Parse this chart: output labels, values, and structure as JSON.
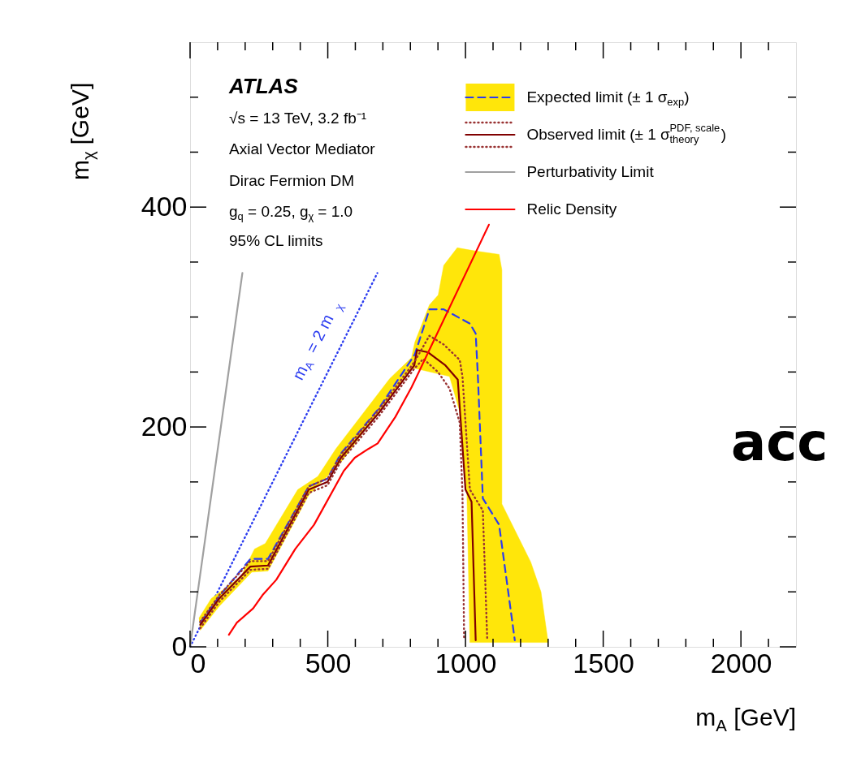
{
  "chart_data": {
    "type": "line",
    "xlabel": "m$_{A}$ [GeV]",
    "ylabel": "m$_{χ}$ [GeV]",
    "xlim": [
      0,
      2200
    ],
    "ylim": [
      0,
      550
    ],
    "xticks": [
      0,
      {
        "value": 100,
        "label": null
      },
      {
        "value": 200,
        "label": null
      },
      {
        "value": 300,
        "label": null
      },
      {
        "value": 400,
        "label": null
      },
      500,
      {
        "value": 600,
        "label": null
      },
      {
        "value": 700,
        "label": null
      },
      {
        "value": 800,
        "label": null
      },
      {
        "value": 900,
        "label": null
      },
      1000,
      {
        "value": 1100,
        "label": null
      },
      {
        "value": 1200,
        "label": null
      },
      {
        "value": 1300,
        "label": null
      },
      {
        "value": 1400,
        "label": null
      },
      1500,
      {
        "value": 1600,
        "label": null
      },
      {
        "value": 1700,
        "label": null
      },
      {
        "value": 1800,
        "label": null
      },
      {
        "value": 1900,
        "label": null
      },
      2000,
      {
        "value": 2100,
        "label": null
      }
    ],
    "yticks": [
      0,
      {
        "value": 50,
        "label": null
      },
      {
        "value": 100,
        "label": null
      },
      {
        "value": 150,
        "label": null
      },
      200,
      {
        "value": 250,
        "label": null
      },
      {
        "value": 300,
        "label": null
      },
      {
        "value": 350,
        "label": null
      },
      400,
      {
        "value": 450,
        "label": null
      },
      {
        "value": 500,
        "label": null
      }
    ],
    "grid": false,
    "legend": "top right",
    "series": [
      {
        "color": "#2b3cf0",
        "line_style": "dotted",
        "x": [
          0,
          680
        ],
        "values": [
          0,
          340
        ]
      },
      {
        "type": "area",
        "color": "#ffe60a",
        "x": [
          32,
          77,
          185,
          234,
          273,
          391,
          464,
          529,
          725,
          804,
          816,
          869,
          901,
          921,
          970,
          1037,
          1122,
          1132,
          1132,
          1237,
          1274,
          1300,
          1016,
          1005,
          979,
          942,
          804,
          548,
          431,
          283,
          224,
          106,
          37
        ],
        "values": [
          26,
          44,
          64,
          89,
          94,
          143,
          155,
          180,
          244,
          263,
          277,
          311,
          320,
          347,
          363,
          360,
          357,
          343,
          130,
          77,
          50,
          4,
          4,
          140,
          214,
          246,
          254,
          168,
          138,
          69,
          68,
          37,
          15
        ]
      },
      {
        "name": "Expected limit (± 1 σ$_{exp}$)",
        "color": "#2b3cf0",
        "line_style": "dashed",
        "x": [
          37,
          106,
          219,
          283,
          431,
          499,
          548,
          686,
          816,
          869,
          921,
          1016,
          1037,
          1045,
          1063,
          1122,
          1179
        ],
        "values": [
          22,
          46,
          80,
          80,
          146,
          153,
          176,
          217,
          266,
          307,
          307,
          294,
          285,
          246,
          135,
          111,
          6
        ]
      },
      {
        "name": "Observed limit (± 1 σ$^{PDF, scale}$$_{theory}$)",
        "color": "#800000",
        "line_style": "solid",
        "x": [
          37,
          106,
          219,
          283,
          431,
          499,
          548,
          686,
          814,
          824,
          863,
          927,
          972,
          1000,
          1022,
          1037
        ],
        "values": [
          20,
          44,
          73,
          74,
          143,
          150,
          172,
          213,
          256,
          270,
          268,
          256,
          243,
          143,
          132,
          6
        ]
      },
      {
        "color": "#993333",
        "line_style": "dotted",
        "x": [
          37,
          106,
          219,
          283,
          431,
          499,
          548,
          686,
          814,
          869,
          921,
          979,
          989,
          1016,
          1063,
          1079
        ],
        "values": [
          23,
          47,
          78,
          78,
          146,
          153,
          175,
          216,
          259,
          283,
          275,
          261,
          246,
          143,
          124,
          6
        ]
      },
      {
        "color": "#993333",
        "line_style": "dotted",
        "x": [
          37,
          106,
          219,
          283,
          431,
          499,
          548,
          686,
          814,
          847,
          900,
          942,
          979,
          989,
          995
        ],
        "values": [
          17,
          41,
          70,
          71,
          140,
          147,
          169,
          210,
          253,
          262,
          250,
          235,
          204,
          140,
          6
        ]
      },
      {
        "name": "Perturbativity Limit",
        "color": "#a0a0a0",
        "line_style": "solid",
        "x": [
          0,
          190
        ],
        "values": [
          0,
          340
        ]
      },
      {
        "name": "Relic Density",
        "color": "#ff0000",
        "line_style": "solid",
        "x": [
          141,
          170,
          229,
          263,
          313,
          382,
          450,
          558,
          598,
          647,
          681,
          745,
          804,
          1085
        ],
        "values": [
          11,
          22,
          35,
          47,
          61,
          89,
          111,
          160,
          172,
          180,
          185,
          209,
          236,
          384
        ]
      }
    ],
    "annotations": [
      "ATLAS",
      "√s = 13 TeV, 3.2 fb⁻¹",
      "Axial Vector Mediator",
      "Dirac Fermion DM",
      "g$_{q}$ = 0.25, g$_{χ}$ = 1.0",
      "95% CL limits",
      "m$_{A}$ = 2 m$_{χ}$",
      "acc"
    ]
  }
}
